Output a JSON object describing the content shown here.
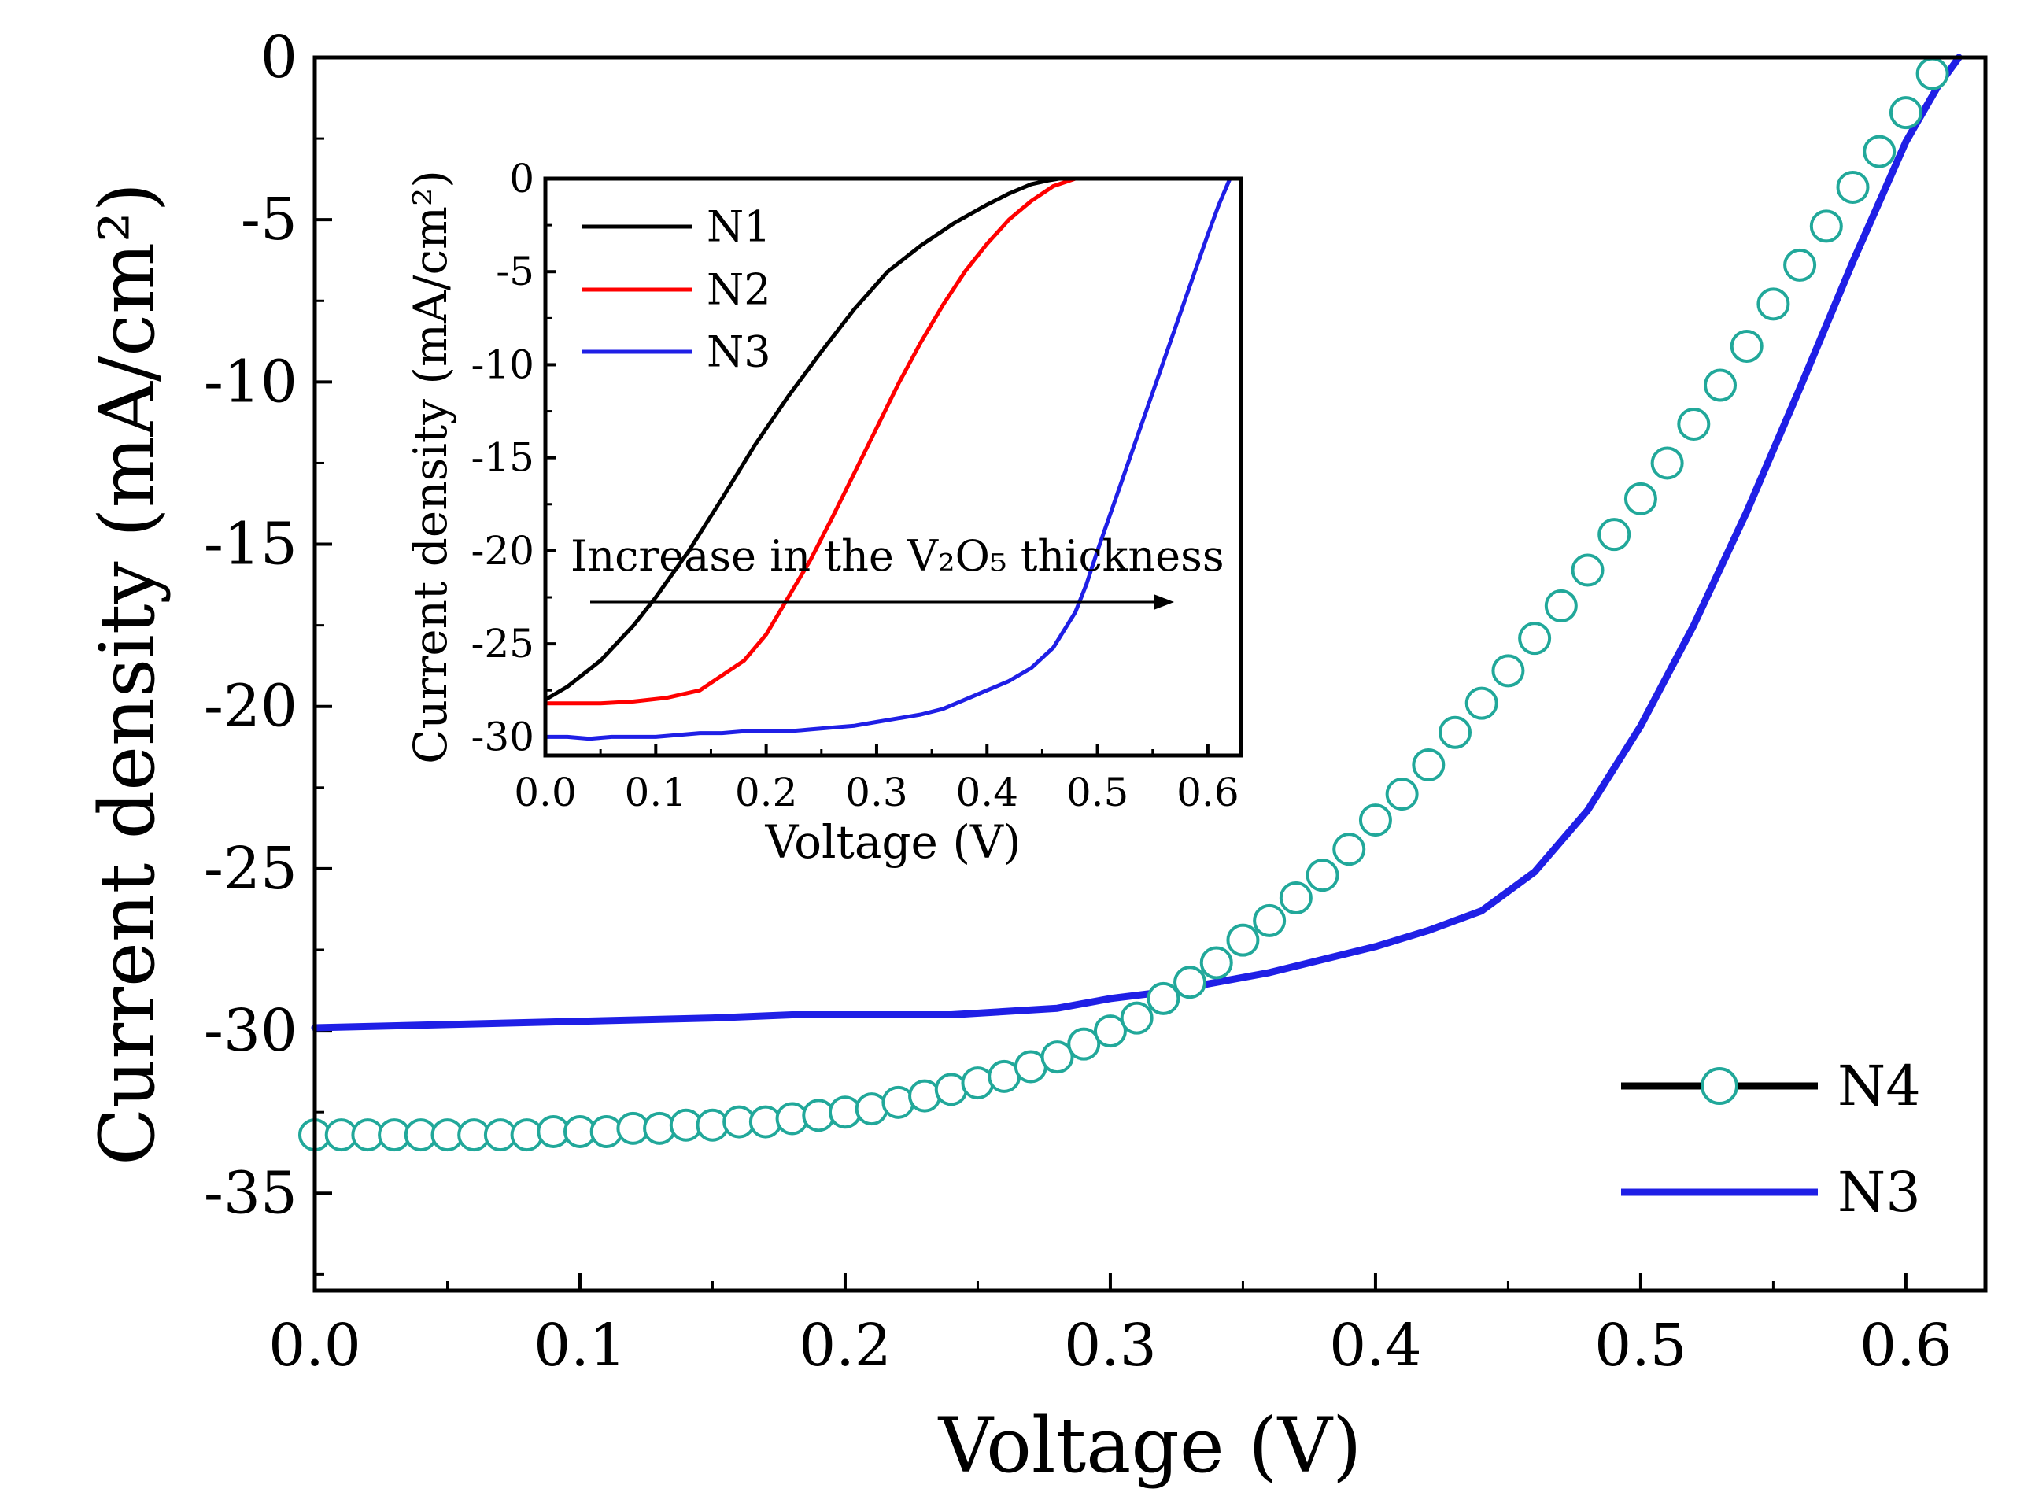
{
  "chart_data": [
    {
      "id": "main",
      "type": "line",
      "xlabel": "Voltage (V)",
      "ylabel": "Current density (mA/cm²)",
      "xlim": [
        0.0,
        0.63
      ],
      "ylim": [
        -38,
        0
      ],
      "xticks": [
        0.0,
        0.1,
        0.2,
        0.3,
        0.4,
        0.5,
        0.6
      ],
      "xtick_labels": [
        "0.0",
        "0.1",
        "0.2",
        "0.3",
        "0.4",
        "0.5",
        "0.6"
      ],
      "yticks": [
        0,
        -5,
        -10,
        -15,
        -20,
        -25,
        -30,
        -35
      ],
      "ytick_labels": [
        "0",
        "-5",
        "-10",
        "-15",
        "-20",
        "-25",
        "-30",
        "-35"
      ],
      "legend": {
        "position": "bottom-right",
        "entries": [
          "N4",
          "N3"
        ]
      },
      "series": [
        {
          "name": "N4",
          "style": "circles",
          "color": "#21a89a",
          "x": [
            0.0,
            0.01,
            0.02,
            0.03,
            0.04,
            0.05,
            0.06,
            0.07,
            0.08,
            0.09,
            0.1,
            0.11,
            0.12,
            0.13,
            0.14,
            0.15,
            0.16,
            0.17,
            0.18,
            0.19,
            0.2,
            0.21,
            0.22,
            0.23,
            0.24,
            0.25,
            0.26,
            0.27,
            0.28,
            0.29,
            0.3,
            0.31,
            0.32,
            0.33,
            0.34,
            0.35,
            0.36,
            0.37,
            0.38,
            0.39,
            0.4,
            0.41,
            0.42,
            0.43,
            0.44,
            0.45,
            0.46,
            0.47,
            0.48,
            0.49,
            0.5,
            0.51,
            0.52,
            0.53,
            0.54,
            0.55,
            0.56,
            0.57,
            0.58,
            0.59,
            0.6,
            0.61
          ],
          "y": [
            -33.2,
            -33.2,
            -33.2,
            -33.2,
            -33.2,
            -33.2,
            -33.2,
            -33.2,
            -33.2,
            -33.1,
            -33.1,
            -33.1,
            -33.0,
            -33.0,
            -32.9,
            -32.9,
            -32.8,
            -32.8,
            -32.7,
            -32.6,
            -32.5,
            -32.4,
            -32.2,
            -32.0,
            -31.8,
            -31.6,
            -31.4,
            -31.1,
            -30.8,
            -30.4,
            -30.0,
            -29.6,
            -29.0,
            -28.5,
            -27.9,
            -27.2,
            -26.6,
            -25.9,
            -25.2,
            -24.4,
            -23.5,
            -22.7,
            -21.8,
            -20.8,
            -19.9,
            -18.9,
            -17.9,
            -16.9,
            -15.8,
            -14.7,
            -13.6,
            -12.5,
            -11.3,
            -10.1,
            -8.9,
            -7.6,
            -6.4,
            -5.2,
            -4.0,
            -2.9,
            -1.7,
            -0.5
          ]
        },
        {
          "name": "N3",
          "style": "line",
          "color": "#1f1fe6",
          "x": [
            0.0,
            0.05,
            0.1,
            0.15,
            0.18,
            0.21,
            0.24,
            0.26,
            0.28,
            0.3,
            0.32,
            0.34,
            0.36,
            0.38,
            0.4,
            0.42,
            0.44,
            0.46,
            0.48,
            0.5,
            0.52,
            0.54,
            0.56,
            0.58,
            0.6,
            0.612,
            0.62
          ],
          "y": [
            -29.9,
            -29.8,
            -29.7,
            -29.6,
            -29.5,
            -29.5,
            -29.5,
            -29.4,
            -29.3,
            -29.0,
            -28.8,
            -28.5,
            -28.2,
            -27.8,
            -27.4,
            -26.9,
            -26.3,
            -25.1,
            -23.2,
            -20.6,
            -17.5,
            -14.0,
            -10.2,
            -6.3,
            -2.6,
            -0.9,
            0.0
          ]
        }
      ]
    },
    {
      "id": "inset",
      "type": "line",
      "xlabel": "Voltage (V)",
      "ylabel": "Current density (mA/cm²)",
      "xlim": [
        0.0,
        0.63
      ],
      "ylim": [
        -31,
        0
      ],
      "xticks": [
        0.0,
        0.1,
        0.2,
        0.3,
        0.4,
        0.5,
        0.6
      ],
      "xtick_labels": [
        "0.0",
        "0.1",
        "0.2",
        "0.3",
        "0.4",
        "0.5",
        "0.6"
      ],
      "yticks": [
        0,
        -5,
        -10,
        -15,
        -20,
        -25,
        -30
      ],
      "ytick_labels": [
        "0",
        "-5",
        "-10",
        "-15",
        "-20",
        "-25",
        "-30"
      ],
      "legend": {
        "position": "top-left",
        "entries": [
          "N1",
          "N2",
          "N3"
        ]
      },
      "annotation": "Increase in the V₂O₅ thickness",
      "series": [
        {
          "name": "N1",
          "style": "line",
          "color": "#000000",
          "x": [
            0.0,
            0.02,
            0.05,
            0.08,
            0.1,
            0.13,
            0.16,
            0.19,
            0.22,
            0.25,
            0.28,
            0.31,
            0.34,
            0.37,
            0.4,
            0.42,
            0.44,
            0.455,
            0.465
          ],
          "y": [
            -28.0,
            -27.3,
            -25.9,
            -24.0,
            -22.5,
            -20.0,
            -17.2,
            -14.3,
            -11.7,
            -9.3,
            -7.0,
            -5.0,
            -3.6,
            -2.4,
            -1.4,
            -0.8,
            -0.3,
            -0.1,
            0.0
          ]
        },
        {
          "name": "N2",
          "style": "line",
          "color": "#ff0000",
          "x": [
            0.0,
            0.02,
            0.05,
            0.08,
            0.11,
            0.14,
            0.16,
            0.18,
            0.2,
            0.22,
            0.24,
            0.26,
            0.28,
            0.3,
            0.32,
            0.34,
            0.36,
            0.38,
            0.4,
            0.42,
            0.44,
            0.46,
            0.48
          ],
          "y": [
            -28.2,
            -28.2,
            -28.2,
            -28.1,
            -27.9,
            -27.5,
            -26.7,
            -25.9,
            -24.5,
            -22.5,
            -20.5,
            -18.2,
            -15.8,
            -13.4,
            -11.0,
            -8.8,
            -6.8,
            -5.0,
            -3.5,
            -2.2,
            -1.2,
            -0.4,
            0.0
          ]
        },
        {
          "name": "N3",
          "style": "line",
          "color": "#1f1fe6",
          "x": [
            0.0,
            0.02,
            0.04,
            0.06,
            0.08,
            0.1,
            0.12,
            0.14,
            0.16,
            0.18,
            0.2,
            0.22,
            0.24,
            0.26,
            0.28,
            0.3,
            0.32,
            0.34,
            0.36,
            0.38,
            0.4,
            0.42,
            0.44,
            0.46,
            0.48,
            0.49,
            0.5,
            0.52,
            0.54,
            0.56,
            0.58,
            0.6,
            0.61,
            0.62
          ],
          "y": [
            -30.0,
            -30.0,
            -30.1,
            -30.0,
            -30.0,
            -30.0,
            -29.9,
            -29.8,
            -29.8,
            -29.7,
            -29.7,
            -29.7,
            -29.6,
            -29.5,
            -29.4,
            -29.2,
            -29.0,
            -28.8,
            -28.5,
            -28.0,
            -27.5,
            -27.0,
            -26.3,
            -25.2,
            -23.3,
            -21.8,
            -20.0,
            -16.6,
            -13.2,
            -9.8,
            -6.4,
            -3.0,
            -1.4,
            0.0
          ]
        }
      ]
    }
  ]
}
